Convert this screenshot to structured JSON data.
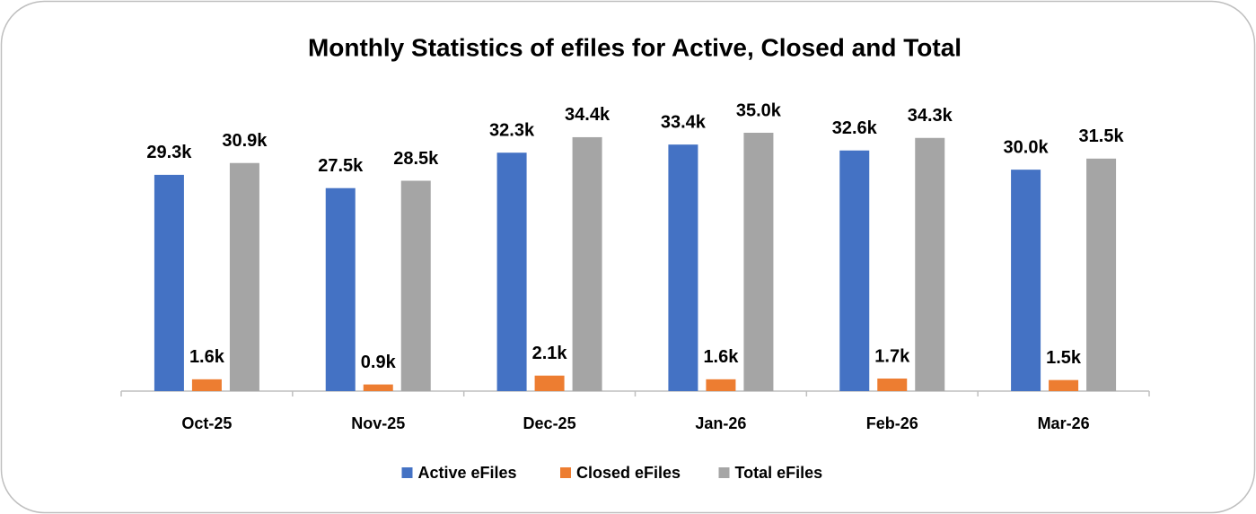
{
  "chart_data": {
    "type": "bar",
    "title": "Monthly Statistics of efiles for Active, Closed and Total",
    "categories": [
      "Oct-25",
      "Nov-25",
      "Dec-25",
      "Jan-26",
      "Feb-26",
      "Mar-26"
    ],
    "series": [
      {
        "name": "Active eFiles",
        "color": "#4472c4",
        "values": [
          29300,
          27500,
          32300,
          33400,
          32600,
          30000
        ],
        "value_labels": [
          "29.3k",
          "27.5k",
          "32.3k",
          "33.4k",
          "32.6k",
          "30.0k"
        ]
      },
      {
        "name": "Closed eFiles",
        "color": "#ed7d31",
        "values": [
          1600,
          900,
          2100,
          1600,
          1700,
          1500
        ],
        "value_labels": [
          "1.6k",
          "0.9k",
          "2.1k",
          "1.6k",
          "1.7k",
          "1.5k"
        ]
      },
      {
        "name": "Total eFiles",
        "color": "#a5a5a5",
        "values": [
          30900,
          28500,
          34400,
          35000,
          34300,
          31500
        ],
        "value_labels": [
          "30.9k",
          "28.5k",
          "34.4k",
          "35.0k",
          "34.3k",
          "31.5k"
        ]
      }
    ],
    "legend": "bottom"
  }
}
